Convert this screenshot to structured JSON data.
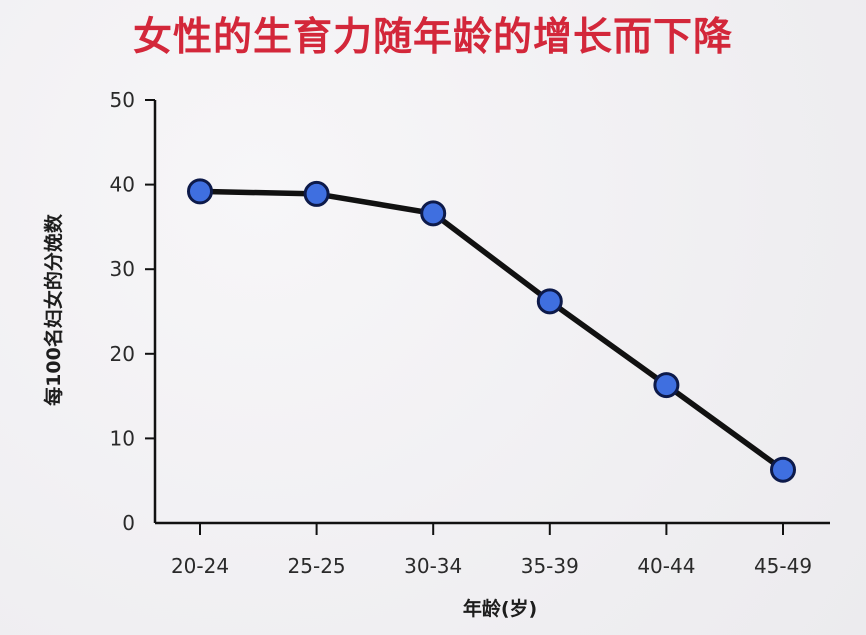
{
  "chart_data": {
    "type": "line",
    "title": "女性的生育力随年龄的增长而下降",
    "xlabel": "年龄(岁)",
    "ylabel": "每100名妇女的分娩数",
    "categories": [
      "20-24",
      "25-25",
      "30-34",
      "35-39",
      "40-44",
      "45-49"
    ],
    "series": [
      {
        "values": [
          39.2,
          38.9,
          36.6,
          26.2,
          16.3,
          6.3
        ]
      }
    ],
    "ylim": [
      0,
      50
    ],
    "yticks": [
      0,
      10,
      20,
      30,
      40,
      50
    ],
    "grid": false,
    "legend": "none",
    "colors": {
      "title": "#d3273a",
      "line": "#111111",
      "marker_fill": "#3f6fe0",
      "marker_stroke": "#0d1a4a",
      "axis": "#111111"
    }
  }
}
